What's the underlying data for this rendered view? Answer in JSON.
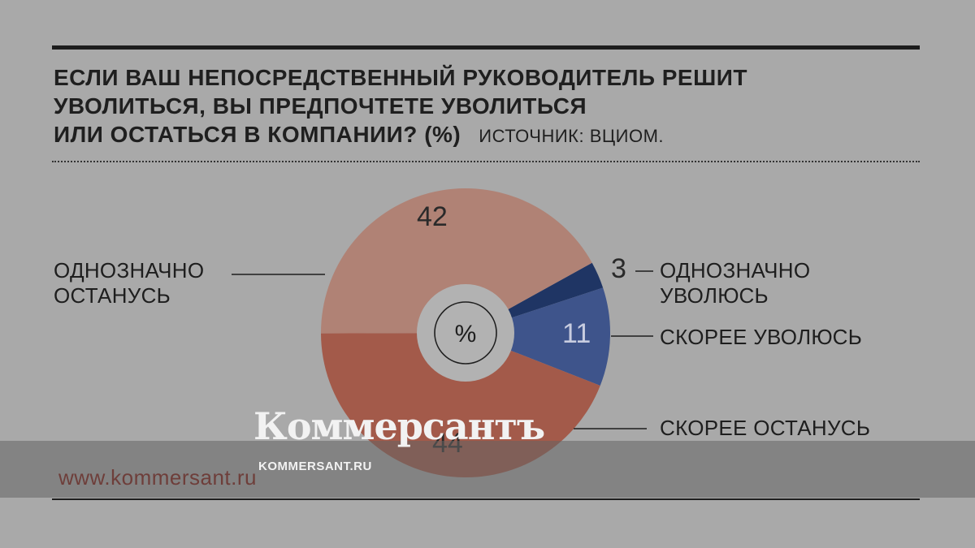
{
  "header": {
    "title_lines": [
      "ЕСЛИ ВАШ НЕПОСРЕДСТВЕННЫЙ РУКОВОДИТЕЛЬ РЕШИТ",
      "УВОЛИТЬСЯ, ВЫ ПРЕДПОЧТЕТЕ УВОЛИТЬСЯ",
      "ИЛИ ОСТАТЬСЯ В КОМПАНИИ? (%)"
    ],
    "source": "ИСТОЧНИК: ВЦИОМ."
  },
  "chart_data": {
    "type": "pie",
    "center_label": "%",
    "slices": [
      {
        "label_lines": [
          "ОДНОЗНАЧНО",
          "УВОЛЮСЬ"
        ],
        "value": 3,
        "value_text": "3",
        "color": "#1f3564"
      },
      {
        "label_lines": [
          "СКОРЕЕ УВОЛЮСЬ"
        ],
        "value": 11,
        "value_text": "11",
        "color": "#3e548b"
      },
      {
        "label_lines": [
          "СКОРЕЕ ОСТАНУСЬ"
        ],
        "value": 44,
        "value_text": "44",
        "color": "#a35a4a"
      },
      {
        "label_lines": [
          "ОДНОЗНАЧНО",
          "ОСТАНУСЬ"
        ],
        "value": 42,
        "value_text": "42",
        "color": "#b08275"
      }
    ]
  },
  "footer": {
    "url": "www.kommersant.ru",
    "watermark_logo": "Коммерсантъ",
    "watermark_sub": "KOMMERSANT.RU"
  }
}
